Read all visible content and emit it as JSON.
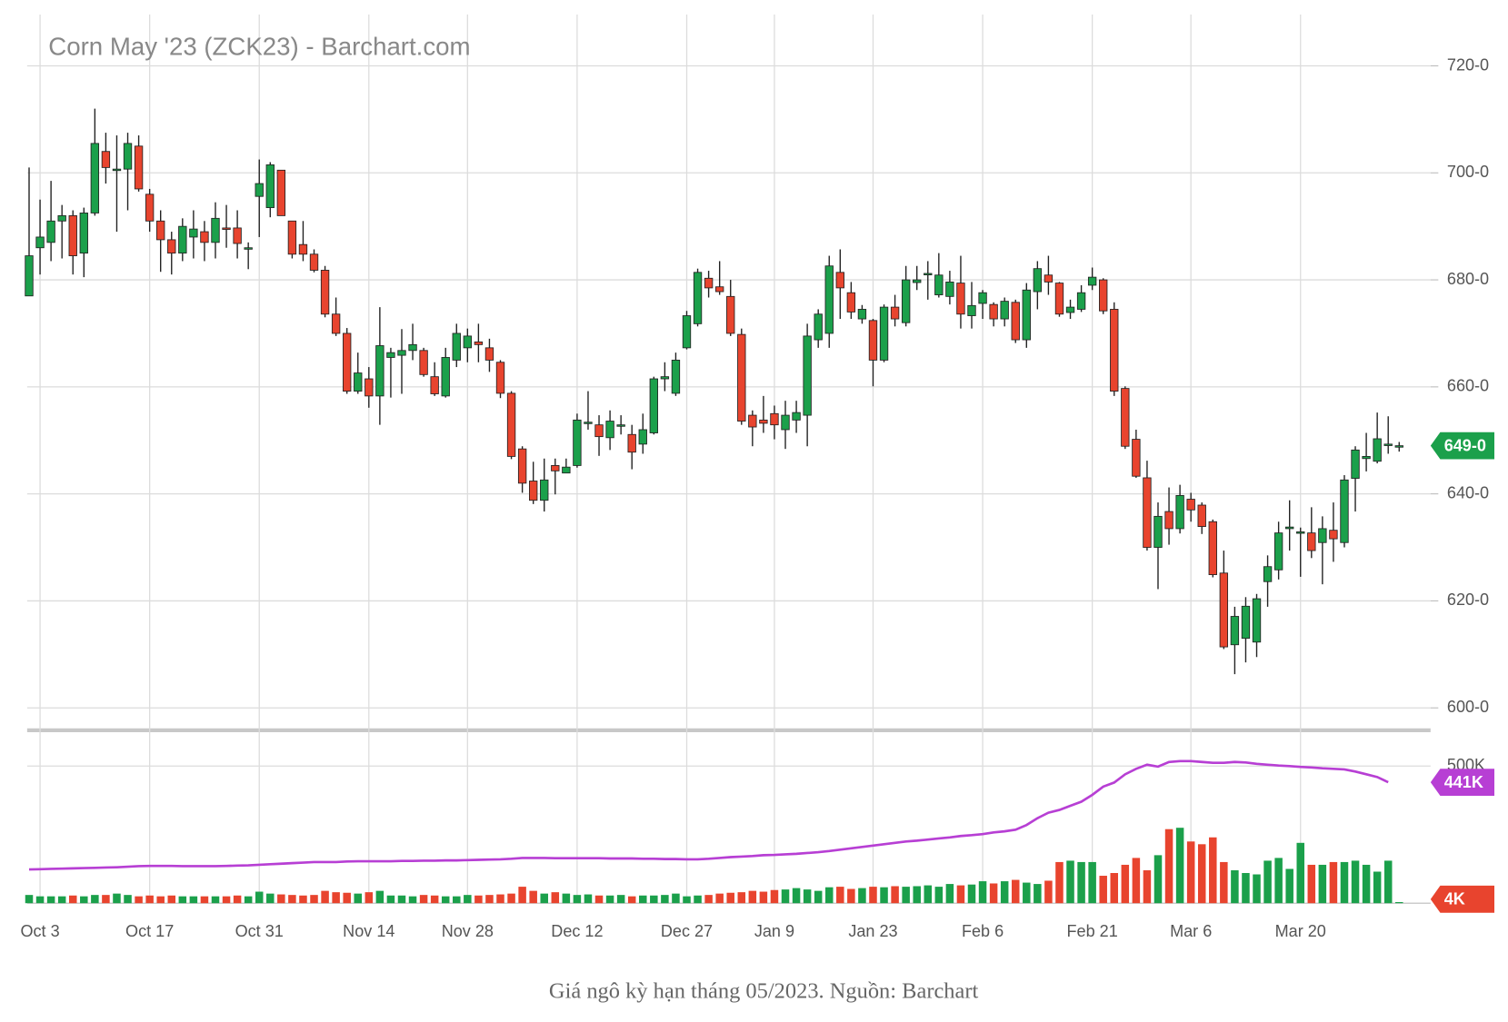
{
  "chart_data": {
    "type": "candlestick",
    "title": "Corn May '23 (ZCK23) - Barchart.com",
    "caption": "Giá ngô kỳ hạn tháng 05/2023. Nguồn: Barchart",
    "categories": [
      null,
      "Oct 3",
      null,
      null,
      null,
      null,
      null,
      null,
      null,
      null,
      null,
      "Oct 17",
      null,
      null,
      null,
      null,
      null,
      null,
      null,
      null,
      null,
      "Oct 31",
      null,
      null,
      null,
      null,
      null,
      null,
      null,
      null,
      null,
      "Nov 14",
      null,
      null,
      null,
      null,
      null,
      null,
      null,
      null,
      "Nov 28",
      null,
      null,
      null,
      null,
      null,
      null,
      null,
      null,
      null,
      "Dec 12",
      null,
      null,
      null,
      null,
      null,
      null,
      null,
      null,
      null,
      "Dec 27",
      null,
      null,
      null,
      null,
      null,
      null,
      null,
      "Jan 9",
      null,
      null,
      null,
      null,
      null,
      null,
      null,
      null,
      "Jan 23",
      null,
      null,
      null,
      null,
      null,
      null,
      null,
      null,
      null,
      "Feb 6",
      null,
      null,
      null,
      null,
      null,
      null,
      null,
      null,
      null,
      "Feb 21",
      null,
      null,
      null,
      null,
      null,
      null,
      null,
      null,
      "Mar 6",
      null,
      null,
      null,
      null,
      null,
      null,
      null,
      null,
      null,
      "Mar 20",
      null,
      null,
      null,
      null,
      null,
      null,
      null,
      null,
      null
    ],
    "open": [
      677,
      686,
      687,
      691,
      692,
      685,
      692.5,
      704,
      700.7,
      700.7,
      705,
      696,
      691,
      687.5,
      685,
      688,
      689,
      687,
      689.7,
      689.7,
      686,
      695.6,
      693.5,
      700.5,
      691,
      686.6,
      684.8,
      681.8,
      673.6,
      670,
      659.2,
      661.5,
      658.3,
      665.5,
      665.9,
      666.8,
      666.8,
      661.9,
      658.3,
      665,
      667.3,
      668.4,
      667.3,
      664.6,
      658.8,
      648.4,
      642.4,
      638.8,
      645.3,
      643.9,
      645.3,
      653.4,
      652.9,
      650.5,
      652.9,
      651.1,
      649.3,
      651.4,
      661.5,
      658.8,
      667.3,
      671.8,
      680.3,
      678.7,
      676.9,
      669.8,
      654.7,
      653.8,
      655,
      652,
      653.8,
      654.7,
      668.8,
      670,
      681.4,
      677.6,
      672.7,
      672.4,
      665,
      674.9,
      672,
      679.5,
      681.2,
      677.2,
      676.9,
      679.4,
      673.3,
      675.6,
      675.4,
      672.7,
      675.8,
      668.8,
      677.8,
      680.9,
      679.4,
      673.9,
      674.5,
      679,
      680,
      674.5,
      659.7,
      650.2,
      643,
      630,
      636.7,
      633.5,
      639,
      637.9,
      634.8,
      625.2,
      611.8,
      613,
      612.3,
      623.6,
      625.8,
      633.5,
      632.9,
      632.7,
      630.9,
      633.2,
      630.9,
      642.9,
      646.6,
      646.1,
      649.3,
      648.9
    ],
    "high": [
      701,
      695,
      698.5,
      694,
      693,
      693.5,
      712,
      707.5,
      707,
      707.5,
      707,
      697,
      693,
      689,
      691.5,
      693,
      691,
      694.5,
      694,
      693,
      687,
      702.5,
      702,
      700.5,
      691,
      691,
      685.7,
      682.6,
      676.7,
      671,
      666.4,
      663.7,
      674.9,
      667.3,
      670.8,
      671.8,
      667.3,
      664.6,
      667.3,
      671.8,
      670.9,
      671.8,
      669,
      665,
      659.2,
      648.9,
      646,
      646.6,
      646.6,
      646.6,
      655,
      659.2,
      654.7,
      655.6,
      654.7,
      652.9,
      655,
      661.9,
      664.6,
      666.4,
      674.2,
      682.1,
      681.7,
      683.5,
      680,
      670.9,
      655.6,
      658.3,
      656.5,
      657.4,
      657.4,
      671.8,
      674.5,
      684.5,
      685.7,
      679.6,
      675.3,
      672.7,
      675.4,
      677.2,
      682.6,
      682.6,
      683.5,
      685,
      681.7,
      684.5,
      679.6,
      678.1,
      675.8,
      676.7,
      676.3,
      679.4,
      683.5,
      684.5,
      679.6,
      676.3,
      679,
      682.3,
      680.3,
      675.8,
      660.1,
      652,
      646.2,
      638.4,
      641.2,
      641.7,
      640.2,
      638.4,
      635.2,
      629.4,
      618.9,
      620.7,
      621.3,
      628.5,
      634.8,
      638.8,
      633.7,
      637.5,
      635.8,
      638.4,
      643.5,
      648.9,
      651.4,
      655.2,
      654.5,
      649.7
    ],
    "low": [
      677,
      681,
      683.5,
      684,
      681,
      680.5,
      692,
      698,
      689,
      693,
      696.5,
      689,
      681.5,
      681,
      683.5,
      684,
      683.5,
      684,
      686,
      684,
      682,
      688,
      691.7,
      692,
      684,
      683.5,
      681.4,
      673,
      669.5,
      658.7,
      658.7,
      656.1,
      652.9,
      658,
      658.7,
      665,
      661.9,
      658.3,
      658,
      663.7,
      664.6,
      664.6,
      662.8,
      657.9,
      646.5,
      640.2,
      638.1,
      636.7,
      639.9,
      643.9,
      644.9,
      652,
      647.1,
      648.2,
      651.1,
      644.6,
      647.5,
      651.1,
      659.2,
      658.3,
      667,
      671.3,
      676.7,
      677.2,
      669.5,
      652.9,
      648.9,
      651.4,
      650.2,
      648.4,
      651.4,
      648.9,
      667.3,
      667.3,
      672.7,
      672.7,
      671.8,
      660.1,
      664.6,
      671.3,
      671.3,
      678.1,
      676.3,
      676.7,
      675.4,
      670.9,
      670.9,
      672.7,
      671.3,
      671.3,
      668.2,
      667.3,
      674.5,
      677.2,
      673.1,
      672.7,
      674,
      678.1,
      673.6,
      658.3,
      648.4,
      643,
      629.4,
      622.2,
      630.5,
      632.6,
      634.8,
      632.5,
      624.4,
      611,
      606.3,
      608.5,
      609.5,
      618.9,
      624,
      629.4,
      624.5,
      628,
      623.1,
      627.3,
      630,
      636.7,
      644.2,
      645.7,
      647.5,
      647.9
    ],
    "close": [
      684.5,
      688,
      691,
      692,
      684.5,
      692.5,
      705.5,
      701,
      700.7,
      705.5,
      697,
      691,
      687.5,
      685,
      690,
      689.5,
      687,
      691.5,
      689.5,
      686.8,
      686,
      698,
      701.5,
      692,
      684.8,
      684.8,
      681.8,
      673.6,
      670,
      659.2,
      662.6,
      658.3,
      667.7,
      666.4,
      666.8,
      667.9,
      662.3,
      658.7,
      665.5,
      670,
      669.5,
      667.9,
      665,
      658.8,
      647,
      642,
      638.8,
      642.6,
      644.3,
      645,
      653.8,
      653.4,
      650.7,
      653.6,
      652.9,
      647.8,
      652,
      661.5,
      661.9,
      665,
      673.3,
      681.4,
      678.5,
      677.8,
      670,
      653.6,
      652.5,
      653.2,
      652.9,
      654.7,
      655.2,
      669.5,
      673.6,
      682.6,
      678.5,
      674,
      674.5,
      665,
      674.9,
      672.7,
      680,
      680,
      681.2,
      680.9,
      679.6,
      673.6,
      675.2,
      677.6,
      672.7,
      676,
      668.8,
      678.1,
      682.1,
      679.6,
      673.6,
      674.9,
      677.6,
      680.5,
      674.2,
      659.2,
      648.9,
      643.3,
      630,
      635.8,
      633.5,
      639.7,
      637,
      633.9,
      624.9,
      611.4,
      617.1,
      619,
      620.4,
      626.4,
      632.7,
      633.8,
      632.9,
      629.4,
      633.5,
      631.6,
      642.6,
      648.2,
      647,
      650.3,
      649.3,
      649
    ],
    "up_color": "#1ba04b",
    "down_color": "#e8442e",
    "ylim": [
      597.8,
      729.6
    ],
    "yticks": [
      {
        "value": 600,
        "label": "600-0"
      },
      {
        "value": 620,
        "label": "620-0"
      },
      {
        "value": 640,
        "label": "640-0"
      },
      {
        "value": 660,
        "label": "660-0"
      },
      {
        "value": 680,
        "label": "680-0"
      },
      {
        "value": 700,
        "label": "700-0"
      },
      {
        "value": 720,
        "label": "720-0"
      }
    ],
    "last_price": {
      "value": 649,
      "label": "649-0"
    },
    "grid": true,
    "volume": {
      "values": [
        30000,
        25000,
        25000,
        25000,
        28000,
        25000,
        30000,
        30000,
        35000,
        30000,
        25000,
        28000,
        25000,
        28000,
        25000,
        25000,
        25000,
        25000,
        25000,
        28000,
        25000,
        42000,
        35000,
        32000,
        30000,
        28000,
        30000,
        45000,
        40000,
        38000,
        35000,
        40000,
        45000,
        28000,
        28000,
        25000,
        30000,
        28000,
        25000,
        25000,
        30000,
        28000,
        30000,
        32000,
        35000,
        60000,
        45000,
        35000,
        40000,
        35000,
        30000,
        32000,
        28000,
        28000,
        30000,
        25000,
        28000,
        28000,
        30000,
        35000,
        25000,
        28000,
        30000,
        35000,
        38000,
        40000,
        45000,
        42000,
        48000,
        50000,
        55000,
        50000,
        45000,
        58000,
        60000,
        52000,
        55000,
        60000,
        58000,
        62000,
        60000,
        62000,
        65000,
        60000,
        70000,
        65000,
        68000,
        80000,
        72000,
        80000,
        85000,
        75000,
        70000,
        82000,
        150000,
        155000,
        150000,
        150000,
        100000,
        110000,
        140000,
        165000,
        120000,
        175000,
        270000,
        275000,
        225000,
        215000,
        240000,
        150000,
        120000,
        110000,
        105000,
        155000,
        165000,
        125000,
        220000,
        140000,
        140000,
        150000,
        150000,
        155000,
        140000,
        115000,
        155000,
        4000
      ],
      "last": {
        "value": 4000,
        "label": "4K"
      },
      "color": "#e8442e"
    },
    "open_interest": {
      "values": [
        123000,
        124000,
        125000,
        126000,
        127000,
        128000,
        129000,
        130000,
        131000,
        133000,
        135000,
        136000,
        136000,
        136000,
        135000,
        135000,
        135000,
        135000,
        136000,
        137000,
        138000,
        140000,
        142000,
        144000,
        146000,
        148000,
        150000,
        150000,
        150000,
        152000,
        153000,
        153000,
        153000,
        153000,
        154000,
        154000,
        155000,
        155000,
        156000,
        156000,
        157000,
        158000,
        159000,
        160000,
        162000,
        165000,
        165000,
        165000,
        164000,
        164000,
        164000,
        164000,
        164000,
        163000,
        163000,
        163000,
        162000,
        162000,
        161000,
        161000,
        160000,
        160000,
        162000,
        165000,
        168000,
        170000,
        172000,
        175000,
        176000,
        178000,
        180000,
        183000,
        186000,
        190000,
        195000,
        200000,
        205000,
        210000,
        215000,
        220000,
        225000,
        228000,
        232000,
        236000,
        240000,
        245000,
        248000,
        252000,
        258000,
        262000,
        268000,
        285000,
        310000,
        330000,
        340000,
        355000,
        370000,
        395000,
        425000,
        440000,
        470000,
        490000,
        505000,
        498000,
        515000,
        518000,
        518000,
        515000,
        512000,
        512000,
        515000,
        513000,
        508000,
        505000,
        502000,
        500000,
        497000,
        495000,
        492000,
        490000,
        488000,
        480000,
        470000,
        460000,
        441000,
        null
      ],
      "color": "#b73fd4",
      "last": {
        "value": 441000,
        "label": "441K"
      }
    },
    "volume_ylim": [
      0,
      627000
    ],
    "volume_yticks": [
      {
        "value": 500000,
        "label": "500K"
      }
    ]
  }
}
